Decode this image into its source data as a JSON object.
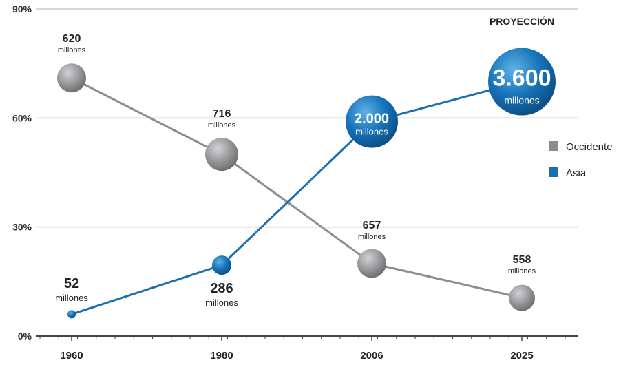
{
  "chart_data": {
    "type": "line",
    "categories": [
      "1960",
      "1980",
      "2006",
      "2025"
    ],
    "y_ticks": [
      "0%",
      "30%",
      "60%",
      "90%"
    ],
    "ylim": [
      0,
      90
    ],
    "grid": true,
    "legend_position": "right",
    "annotation": "PROYECCIÓN",
    "unit_label": "millones",
    "series": [
      {
        "name": "Occidente",
        "color": "#8c8c8e",
        "values": [
          71,
          50,
          20,
          10.5
        ],
        "labels": [
          "620",
          "716",
          "657",
          "558"
        ]
      },
      {
        "name": "Asia",
        "color": "#1a6fb0",
        "values": [
          6,
          19.5,
          59,
          70
        ],
        "labels": [
          "52",
          "286",
          "2.000",
          "3.600"
        ]
      }
    ]
  }
}
